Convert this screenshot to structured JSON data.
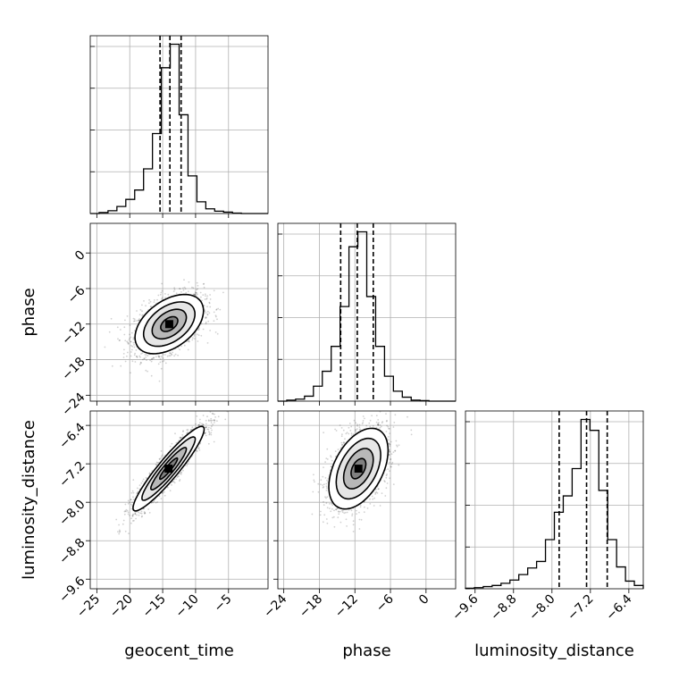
{
  "chart_data": {
    "type": "corner",
    "parameters": [
      "geocent_time",
      "phase",
      "luminosity_distance"
    ],
    "axis_labels": {
      "geocent_time": "geocent_time",
      "phase": "phase",
      "luminosity_distance": "luminosity_distance"
    },
    "ranges": {
      "geocent_time": [
        -26,
        1
      ],
      "phase": [
        -25,
        5
      ],
      "luminosity_distance": [
        -9.8,
        -6.1
      ]
    },
    "ticks": {
      "geocent_time": [
        -25,
        -20,
        -15,
        -10,
        -5
      ],
      "phase": [
        -24,
        -18,
        -12,
        -6,
        0
      ],
      "luminosity_distance": [
        -9.6,
        -8.8,
        -8.0,
        -7.2,
        -6.4
      ]
    },
    "tick_labels": {
      "geocent_time": [
        "−25",
        "−20",
        "−15",
        "−10",
        "−5"
      ],
      "phase": [
        "−24",
        "−18",
        "−12",
        "−6",
        "0"
      ],
      "luminosity_distance": [
        "−9.6",
        "−8.8",
        "−8.0",
        "−7.2",
        "−6.4"
      ]
    },
    "histograms": {
      "geocent_time": {
        "edges": [
          -26,
          -24.65,
          -23.3,
          -21.95,
          -20.6,
          -19.25,
          -17.9,
          -16.55,
          -15.2,
          -13.85,
          -12.5,
          -11.15,
          -9.8,
          -8.45,
          -7.1,
          -5.75,
          -4.4,
          -3.05,
          -1.7,
          -0.35,
          1
        ],
        "counts": [
          0,
          2,
          6,
          15,
          30,
          50,
          95,
          170,
          310,
          360,
          210,
          80,
          25,
          10,
          5,
          3,
          1,
          0,
          0,
          0
        ],
        "quantiles": [
          -15.4,
          -13.9,
          -12.2
        ]
      },
      "phase": {
        "edges": [
          -25,
          -23.5,
          -22,
          -20.5,
          -19,
          -17.5,
          -16,
          -14.5,
          -13,
          -11.5,
          -10,
          -8.5,
          -7,
          -5.5,
          -4,
          -2.5,
          -1,
          0.5,
          2,
          3.5,
          5
        ],
        "counts": [
          0,
          2,
          4,
          10,
          30,
          60,
          110,
          190,
          310,
          340,
          210,
          110,
          50,
          20,
          8,
          2,
          1,
          0,
          0,
          0
        ],
        "quantiles": [
          -14.4,
          -11.6,
          -8.9
        ]
      },
      "luminosity_distance": {
        "edges": [
          -9.8,
          -9.615,
          -9.43,
          -9.245,
          -9.06,
          -8.875,
          -8.69,
          -8.505,
          -8.32,
          -8.135,
          -7.95,
          -7.765,
          -7.58,
          -7.395,
          -7.21,
          -7.025,
          -6.84,
          -6.655,
          -6.47,
          -6.285,
          -6.1
        ],
        "counts": [
          1,
          2,
          4,
          6,
          10,
          16,
          26,
          38,
          50,
          90,
          140,
          170,
          220,
          310,
          290,
          180,
          90,
          40,
          14,
          6
        ],
        "quantiles": [
          -7.85,
          -7.28,
          -6.85
        ]
      }
    },
    "pairs": [
      {
        "x": "geocent_time",
        "y": "phase",
        "center": [
          -14,
          -12
        ],
        "sigma": [
          2.6,
          2.5
        ],
        "rho": 0.45,
        "n": 1900
      },
      {
        "x": "geocent_time",
        "y": "luminosity_distance",
        "center": [
          -14.1,
          -7.3
        ],
        "sigma": [
          2.7,
          0.44
        ],
        "rho": 0.93,
        "n": 1900
      },
      {
        "x": "phase",
        "y": "luminosity_distance",
        "center": [
          -11.4,
          -7.3
        ],
        "sigma": [
          2.5,
          0.42
        ],
        "rho": 0.45,
        "n": 1900
      }
    ],
    "contour_levels_sigma": [
      0.5,
      1.0,
      1.5,
      2.0
    ],
    "grid": true
  }
}
